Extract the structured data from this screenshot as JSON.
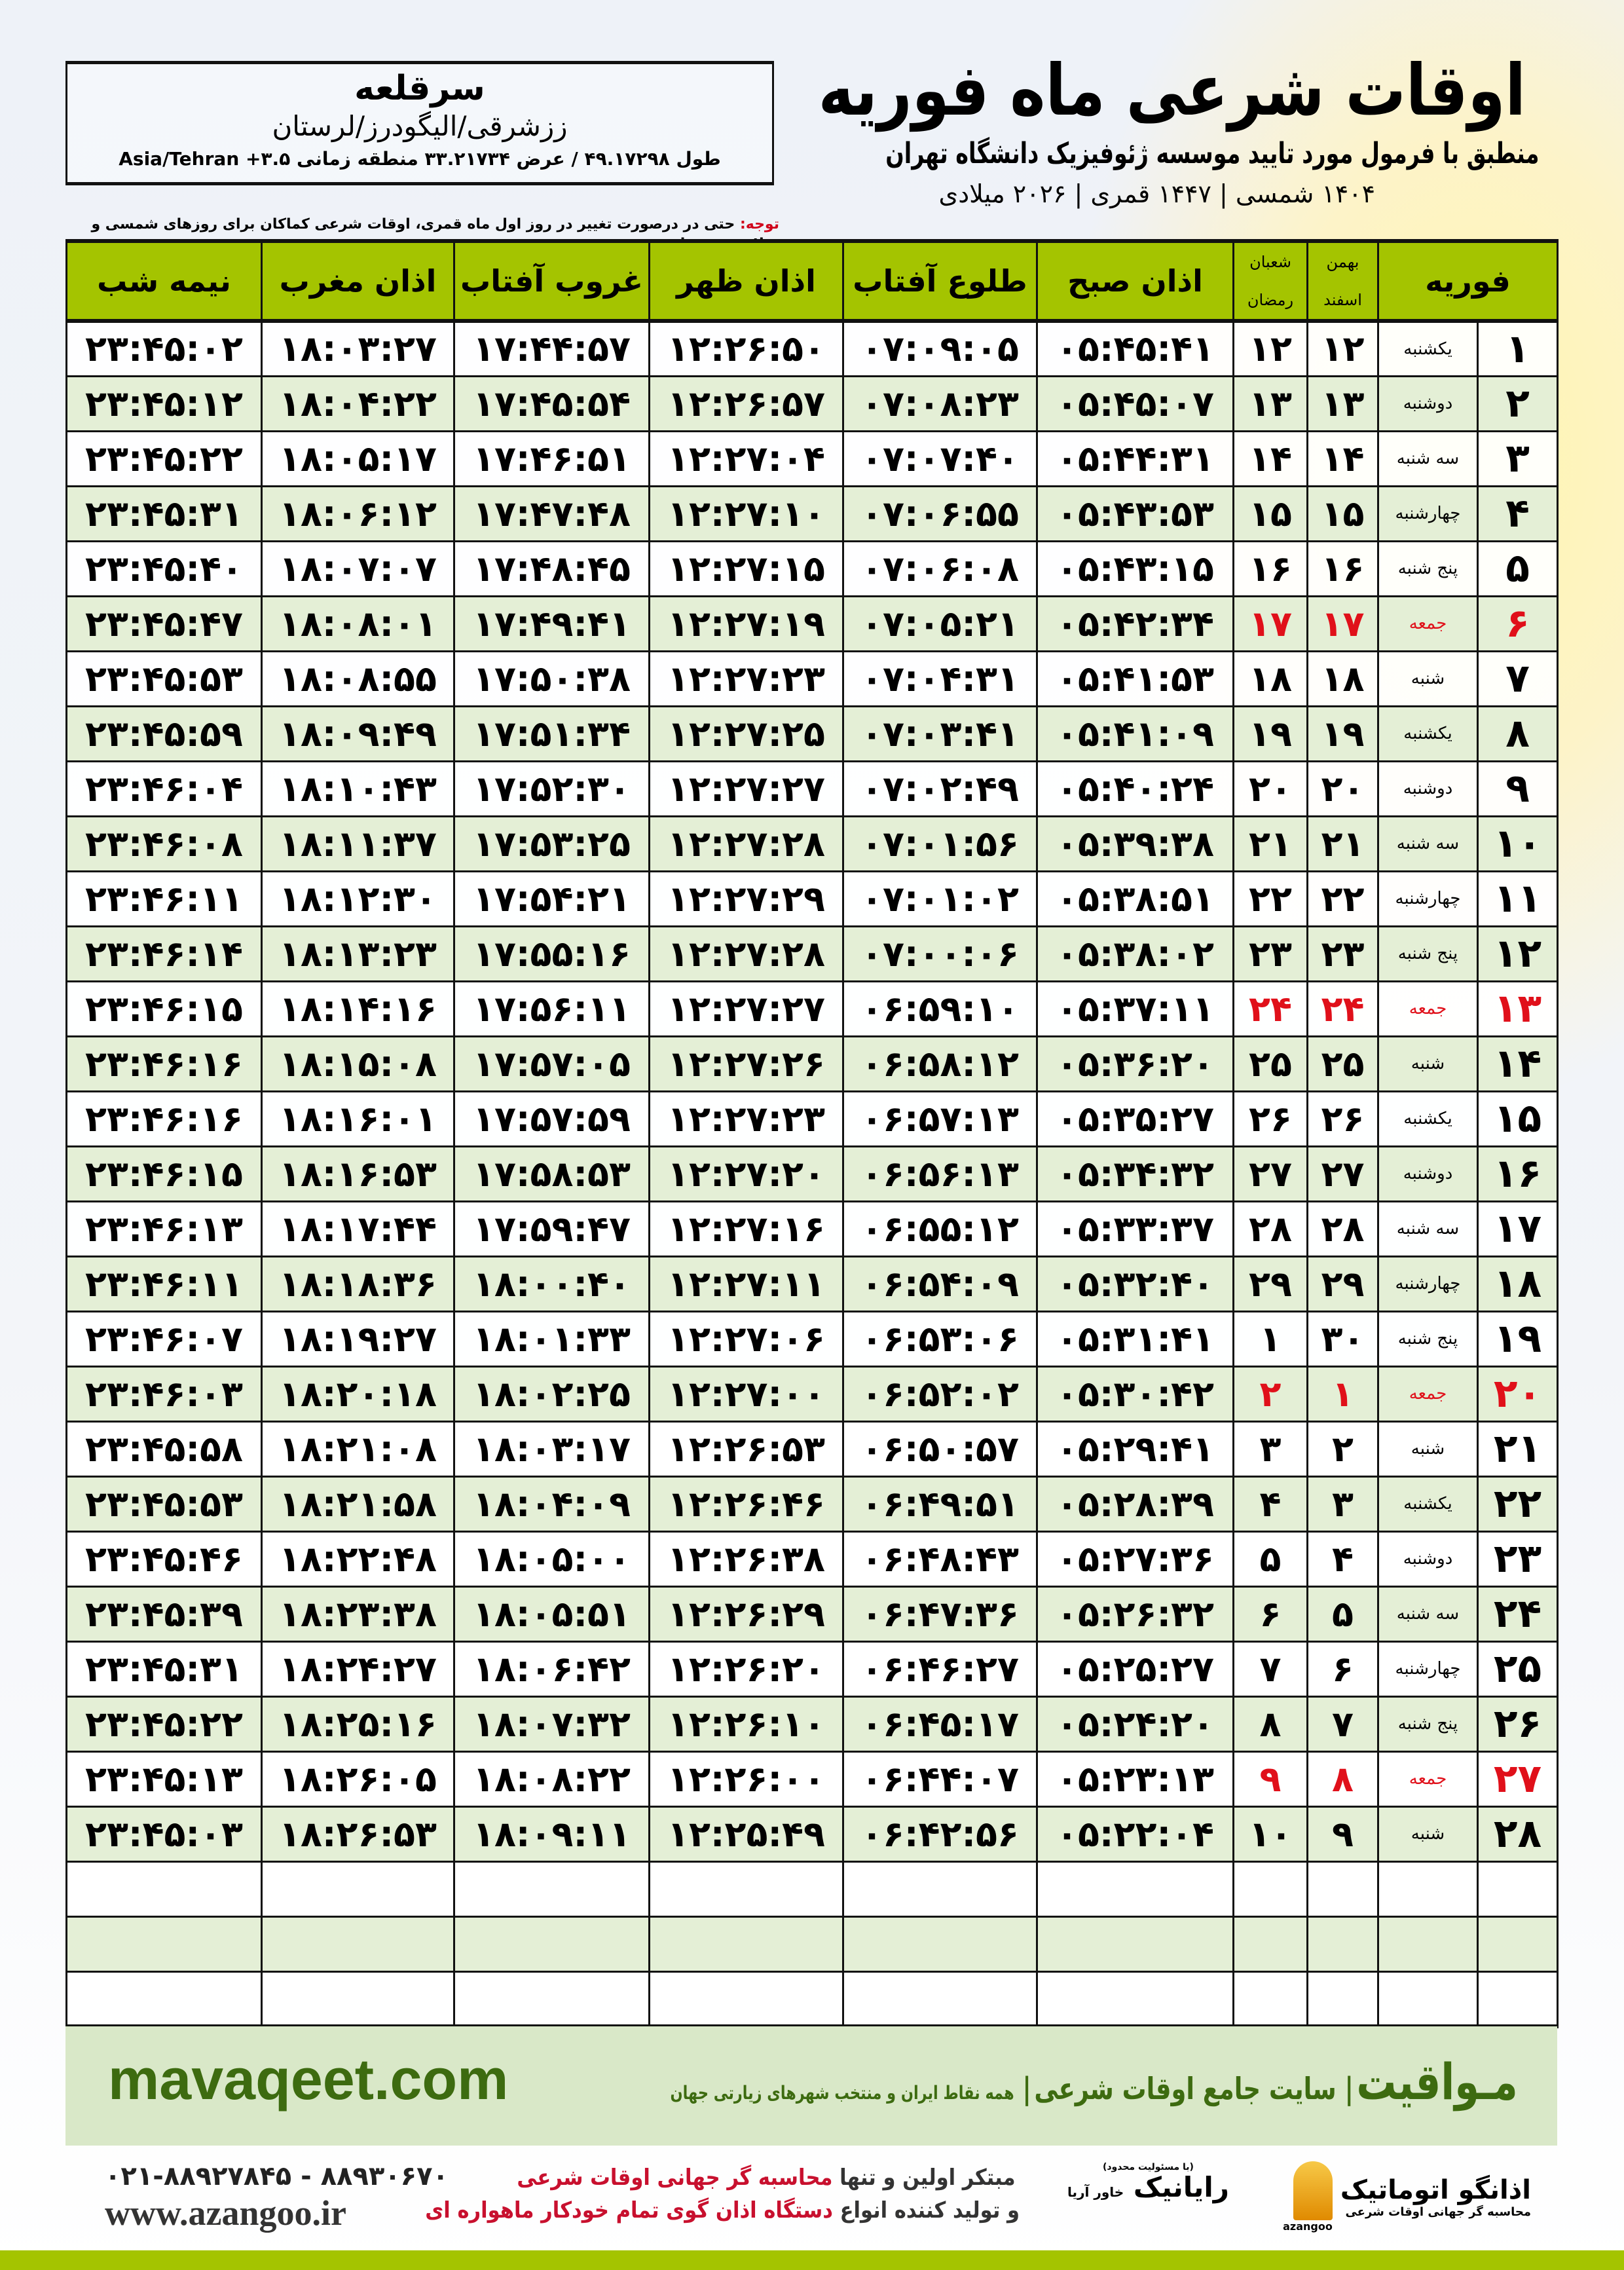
{
  "header": {
    "title": "اوقات شرعی ماه فوریه",
    "subtitle": "منطبق با فرمول مورد تایید موسسه ژئوفیزیک دانشگاه تهران",
    "dates": "۱۴۰۴ شمسی | ۱۴۴۷ قمری | ۲۰۲۶ میلادی"
  },
  "location": {
    "city": "سرقلعه",
    "province": "ززشرقی/الیگودرز/لرستان",
    "coords": "طول ۴۹.۱۷۲۹۸ / عرض ۳۳.۲۱۷۳۴ منطقه زمانی ۳.۵+ Asia/Tehran"
  },
  "note": {
    "label": "توجه:",
    "text": " حتی در درصورت تغییر در روز اول ماه قمری، اوقات شرعی کماکان برای روزهای شمسی و میلادی معتبر است."
  },
  "table": {
    "headers": {
      "month": "فوریه",
      "shamsi": [
        "بهمن",
        "اسفند"
      ],
      "qamari": [
        "شعبان",
        "رمضان"
      ],
      "fajr": "اذان صبح",
      "sunrise": "طلوع آفتاب",
      "dhuhr": "اذان ظهر",
      "sunset": "غروب آفتاب",
      "maghrib": "اذان مغرب",
      "midnight": "نیمه شب"
    },
    "rows": [
      [
        "۱",
        "یکشنبه",
        "۱۲",
        "۱۲",
        "۰۵:۴۵:۴۱",
        "۰۷:۰۹:۰۵",
        "۱۲:۲۶:۵۰",
        "۱۷:۴۴:۵۷",
        "۱۸:۰۳:۲۷",
        "۲۳:۴۵:۰۲"
      ],
      [
        "۲",
        "دوشنبه",
        "۱۳",
        "۱۳",
        "۰۵:۴۵:۰۷",
        "۰۷:۰۸:۲۳",
        "۱۲:۲۶:۵۷",
        "۱۷:۴۵:۵۴",
        "۱۸:۰۴:۲۲",
        "۲۳:۴۵:۱۲"
      ],
      [
        "۳",
        "سه شنبه",
        "۱۴",
        "۱۴",
        "۰۵:۴۴:۳۱",
        "۰۷:۰۷:۴۰",
        "۱۲:۲۷:۰۴",
        "۱۷:۴۶:۵۱",
        "۱۸:۰۵:۱۷",
        "۲۳:۴۵:۲۲"
      ],
      [
        "۴",
        "چهارشنبه",
        "۱۵",
        "۱۵",
        "۰۵:۴۳:۵۳",
        "۰۷:۰۶:۵۵",
        "۱۲:۲۷:۱۰",
        "۱۷:۴۷:۴۸",
        "۱۸:۰۶:۱۲",
        "۲۳:۴۵:۳۱"
      ],
      [
        "۵",
        "پنج شنبه",
        "۱۶",
        "۱۶",
        "۰۵:۴۳:۱۵",
        "۰۷:۰۶:۰۸",
        "۱۲:۲۷:۱۵",
        "۱۷:۴۸:۴۵",
        "۱۸:۰۷:۰۷",
        "۲۳:۴۵:۴۰"
      ],
      [
        "۶",
        "جمعه",
        "۱۷",
        "۱۷",
        "۰۵:۴۲:۳۴",
        "۰۷:۰۵:۲۱",
        "۱۲:۲۷:۱۹",
        "۱۷:۴۹:۴۱",
        "۱۸:۰۸:۰۱",
        "۲۳:۴۵:۴۷"
      ],
      [
        "۷",
        "شنبه",
        "۱۸",
        "۱۸",
        "۰۵:۴۱:۵۳",
        "۰۷:۰۴:۳۱",
        "۱۲:۲۷:۲۳",
        "۱۷:۵۰:۳۸",
        "۱۸:۰۸:۵۵",
        "۲۳:۴۵:۵۳"
      ],
      [
        "۸",
        "یکشنبه",
        "۱۹",
        "۱۹",
        "۰۵:۴۱:۰۹",
        "۰۷:۰۳:۴۱",
        "۱۲:۲۷:۲۵",
        "۱۷:۵۱:۳۴",
        "۱۸:۰۹:۴۹",
        "۲۳:۴۵:۵۹"
      ],
      [
        "۹",
        "دوشنبه",
        "۲۰",
        "۲۰",
        "۰۵:۴۰:۲۴",
        "۰۷:۰۲:۴۹",
        "۱۲:۲۷:۲۷",
        "۱۷:۵۲:۳۰",
        "۱۸:۱۰:۴۳",
        "۲۳:۴۶:۰۴"
      ],
      [
        "۱۰",
        "سه شنبه",
        "۲۱",
        "۲۱",
        "۰۵:۳۹:۳۸",
        "۰۷:۰۱:۵۶",
        "۱۲:۲۷:۲۸",
        "۱۷:۵۳:۲۵",
        "۱۸:۱۱:۳۷",
        "۲۳:۴۶:۰۸"
      ],
      [
        "۱۱",
        "چهارشنبه",
        "۲۲",
        "۲۲",
        "۰۵:۳۸:۵۱",
        "۰۷:۰۱:۰۲",
        "۱۲:۲۷:۲۹",
        "۱۷:۵۴:۲۱",
        "۱۸:۱۲:۳۰",
        "۲۳:۴۶:۱۱"
      ],
      [
        "۱۲",
        "پنج شنبه",
        "۲۳",
        "۲۳",
        "۰۵:۳۸:۰۲",
        "۰۷:۰۰:۰۶",
        "۱۲:۲۷:۲۸",
        "۱۷:۵۵:۱۶",
        "۱۸:۱۳:۲۳",
        "۲۳:۴۶:۱۴"
      ],
      [
        "۱۳",
        "جمعه",
        "۲۴",
        "۲۴",
        "۰۵:۳۷:۱۱",
        "۰۶:۵۹:۱۰",
        "۱۲:۲۷:۲۷",
        "۱۷:۵۶:۱۱",
        "۱۸:۱۴:۱۶",
        "۲۳:۴۶:۱۵"
      ],
      [
        "۱۴",
        "شنبه",
        "۲۵",
        "۲۵",
        "۰۵:۳۶:۲۰",
        "۰۶:۵۸:۱۲",
        "۱۲:۲۷:۲۶",
        "۱۷:۵۷:۰۵",
        "۱۸:۱۵:۰۸",
        "۲۳:۴۶:۱۶"
      ],
      [
        "۱۵",
        "یکشنبه",
        "۲۶",
        "۲۶",
        "۰۵:۳۵:۲۷",
        "۰۶:۵۷:۱۳",
        "۱۲:۲۷:۲۳",
        "۱۷:۵۷:۵۹",
        "۱۸:۱۶:۰۱",
        "۲۳:۴۶:۱۶"
      ],
      [
        "۱۶",
        "دوشنبه",
        "۲۷",
        "۲۷",
        "۰۵:۳۴:۳۲",
        "۰۶:۵۶:۱۳",
        "۱۲:۲۷:۲۰",
        "۱۷:۵۸:۵۳",
        "۱۸:۱۶:۵۳",
        "۲۳:۴۶:۱۵"
      ],
      [
        "۱۷",
        "سه شنبه",
        "۲۸",
        "۲۸",
        "۰۵:۳۳:۳۷",
        "۰۶:۵۵:۱۲",
        "۱۲:۲۷:۱۶",
        "۱۷:۵۹:۴۷",
        "۱۸:۱۷:۴۴",
        "۲۳:۴۶:۱۳"
      ],
      [
        "۱۸",
        "چهارشنبه",
        "۲۹",
        "۲۹",
        "۰۵:۳۲:۴۰",
        "۰۶:۵۴:۰۹",
        "۱۲:۲۷:۱۱",
        "۱۸:۰۰:۴۰",
        "۱۸:۱۸:۳۶",
        "۲۳:۴۶:۱۱"
      ],
      [
        "۱۹",
        "پنج شنبه",
        "۳۰",
        "۱",
        "۰۵:۳۱:۴۱",
        "۰۶:۵۳:۰۶",
        "۱۲:۲۷:۰۶",
        "۱۸:۰۱:۳۳",
        "۱۸:۱۹:۲۷",
        "۲۳:۴۶:۰۷"
      ],
      [
        "۲۰",
        "جمعه",
        "۱",
        "۲",
        "۰۵:۳۰:۴۲",
        "۰۶:۵۲:۰۲",
        "۱۲:۲۷:۰۰",
        "۱۸:۰۲:۲۵",
        "۱۸:۲۰:۱۸",
        "۲۳:۴۶:۰۳"
      ],
      [
        "۲۱",
        "شنبه",
        "۲",
        "۳",
        "۰۵:۲۹:۴۱",
        "۰۶:۵۰:۵۷",
        "۱۲:۲۶:۵۳",
        "۱۸:۰۳:۱۷",
        "۱۸:۲۱:۰۸",
        "۲۳:۴۵:۵۸"
      ],
      [
        "۲۲",
        "یکشنبه",
        "۳",
        "۴",
        "۰۵:۲۸:۳۹",
        "۰۶:۴۹:۵۱",
        "۱۲:۲۶:۴۶",
        "۱۸:۰۴:۰۹",
        "۱۸:۲۱:۵۸",
        "۲۳:۴۵:۵۳"
      ],
      [
        "۲۳",
        "دوشنبه",
        "۴",
        "۵",
        "۰۵:۲۷:۳۶",
        "۰۶:۴۸:۴۳",
        "۱۲:۲۶:۳۸",
        "۱۸:۰۵:۰۰",
        "۱۸:۲۲:۴۸",
        "۲۳:۴۵:۴۶"
      ],
      [
        "۲۴",
        "سه شنبه",
        "۵",
        "۶",
        "۰۵:۲۶:۳۲",
        "۰۶:۴۷:۳۶",
        "۱۲:۲۶:۲۹",
        "۱۸:۰۵:۵۱",
        "۱۸:۲۳:۳۸",
        "۲۳:۴۵:۳۹"
      ],
      [
        "۲۵",
        "چهارشنبه",
        "۶",
        "۷",
        "۰۵:۲۵:۲۷",
        "۰۶:۴۶:۲۷",
        "۱۲:۲۶:۲۰",
        "۱۸:۰۶:۴۲",
        "۱۸:۲۴:۲۷",
        "۲۳:۴۵:۳۱"
      ],
      [
        "۲۶",
        "پنج شنبه",
        "۷",
        "۸",
        "۰۵:۲۴:۲۰",
        "۰۶:۴۵:۱۷",
        "۱۲:۲۶:۱۰",
        "۱۸:۰۷:۳۲",
        "۱۸:۲۵:۱۶",
        "۲۳:۴۵:۲۲"
      ],
      [
        "۲۷",
        "جمعه",
        "۸",
        "۹",
        "۰۵:۲۳:۱۳",
        "۰۶:۴۴:۰۷",
        "۱۲:۲۶:۰۰",
        "۱۸:۰۸:۲۲",
        "۱۸:۲۶:۰۵",
        "۲۳:۴۵:۱۳"
      ],
      [
        "۲۸",
        "شنبه",
        "۹",
        "۱۰",
        "۰۵:۲۲:۰۴",
        "۰۶:۴۲:۵۶",
        "۱۲:۲۵:۴۹",
        "۱۸:۰۹:۱۱",
        "۱۸:۲۶:۵۳",
        "۲۳:۴۵:۰۳"
      ]
    ],
    "holiday_color": "#e0101a",
    "header_color": "#a4c400"
  },
  "footer": {
    "site": "mavaqeet.com",
    "brand": "مـواقیت",
    "tagline": "سایت جامع اوقات شرعی",
    "tagline2": "همه نقاط ایران و منتخب شهرهای زیارتی جهان",
    "phone": "۰۲۱-۸۸۹۲۷۸۴۵ - ۸۸۹۳۰۶۷۰",
    "web": "www.azangoo.ir",
    "promo1a": "مبتکر اولین و تنها ",
    "promo1b": "محاسبه گر جهانی اوقات شرعی",
    "promo2a": "و تولید کننده انواع ",
    "promo2b": "دستگاه اذان گوی تمام خودکار ماهواره ای",
    "logo_rayanik": "رایانیک",
    "logo_rayanik_sub": "خاور آریا",
    "logo_rayanik_note": "(با مسئولیت محدود)",
    "logo_azangoo": "اذانگو اتوماتیک",
    "logo_azangoo_sub": "محاسبه گر جهانی اوقات شرعی",
    "logo_azangoo_en": "azangoo"
  }
}
